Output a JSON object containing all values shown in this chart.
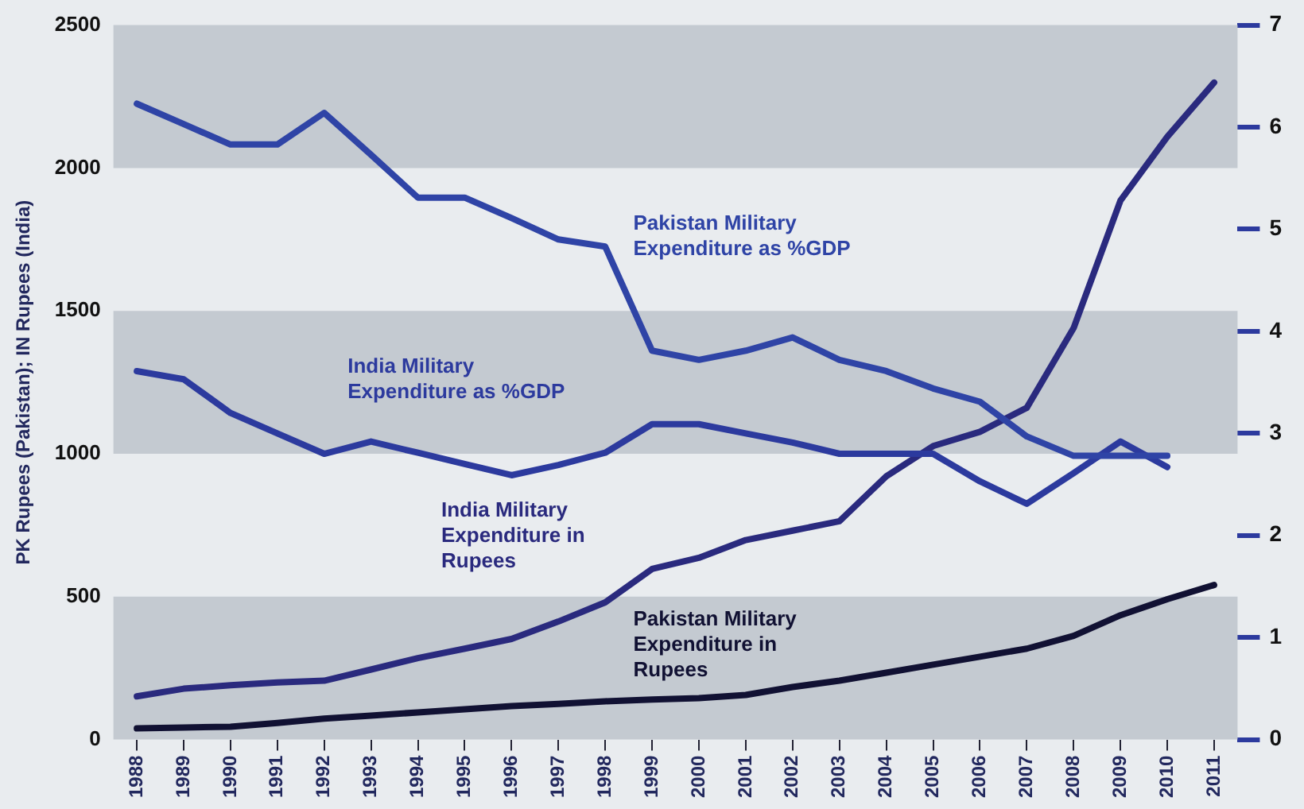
{
  "chart_data": {
    "type": "line",
    "ylabel": "PK Rupees (Pakistan); IN Rupees (India)",
    "categories": [
      "1988",
      "1989",
      "1990",
      "1991",
      "1992",
      "1993",
      "1994",
      "1995",
      "1996",
      "1997",
      "1998",
      "1999",
      "2000",
      "2001",
      "2002",
      "2003",
      "2004",
      "2005",
      "2006",
      "2007",
      "2008",
      "2009",
      "2010",
      "2011"
    ],
    "series": [
      {
        "name": "Pakistan Military Expenditure as %GDP",
        "color": "#2f44a6",
        "axis": "y2",
        "values": [
          6.23,
          6.03,
          5.83,
          5.83,
          6.14,
          5.73,
          5.31,
          5.31,
          5.11,
          4.9,
          4.83,
          3.81,
          3.72,
          3.81,
          3.94,
          3.72,
          3.61,
          3.44,
          3.31,
          2.97,
          2.78,
          2.78,
          2.78,
          null
        ]
      },
      {
        "name": "India Military Expenditure as %GDP",
        "color": "#2c3a9e",
        "axis": "y2",
        "values": [
          3.61,
          3.53,
          3.2,
          3.0,
          2.8,
          2.92,
          2.81,
          2.7,
          2.59,
          2.69,
          2.81,
          3.09,
          3.09,
          3.0,
          2.91,
          2.8,
          2.8,
          2.8,
          2.53,
          2.31,
          2.61,
          2.92,
          2.67,
          null
        ]
      },
      {
        "name": "India Military Expenditure in Rupees",
        "color": "#2a2a7e",
        "values": [
          151,
          178,
          190,
          200,
          206,
          245,
          285,
          318,
          352,
          413,
          480,
          597,
          636,
          698,
          731,
          764,
          921,
          1027,
          1077,
          1161,
          1440,
          1886,
          2109,
          2299
        ]
      },
      {
        "name": "Pakistan Military Expenditure in Rupees",
        "color": "#111133",
        "values": [
          39,
          42,
          45,
          58,
          73,
          84,
          95,
          106,
          117,
          125,
          134,
          140,
          145,
          156,
          184,
          206,
          234,
          262,
          290,
          318,
          363,
          435,
          491,
          541
        ]
      }
    ],
    "ylim": [
      0,
      2500
    ],
    "yticks": [
      0,
      500,
      1000,
      1500,
      2000,
      2500
    ],
    "y2lim": [
      0,
      7
    ],
    "y2ticks": [
      0,
      1,
      2,
      3,
      4,
      5,
      6,
      7
    ],
    "bands": [
      {
        "axis": "y",
        "from": 0,
        "to": 500,
        "color": "#c4cad1"
      },
      {
        "axis": "y",
        "from": 1000,
        "to": 1500,
        "color": "#c4cad1"
      },
      {
        "axis": "y",
        "from": 2000,
        "to": 2500,
        "color": "#c4cad1"
      }
    ],
    "grid": false,
    "legend": false,
    "marker": "none",
    "line_style": "solid"
  }
}
